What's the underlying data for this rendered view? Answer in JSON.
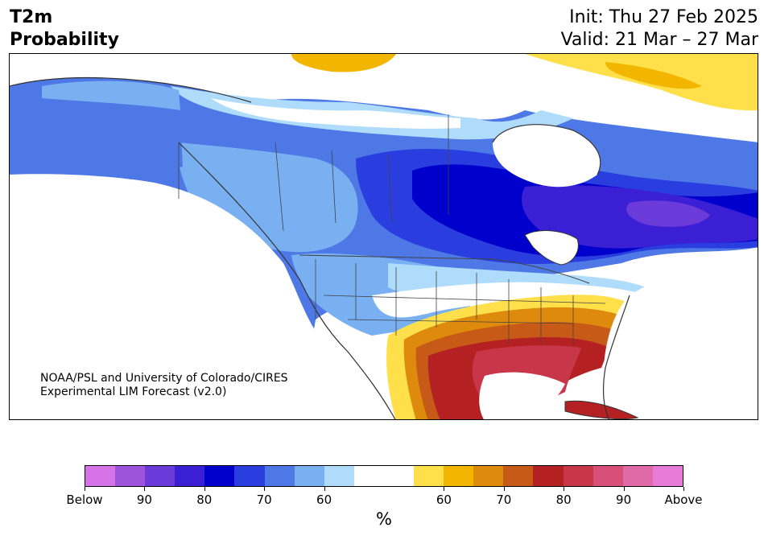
{
  "title": {
    "variable": "T2m",
    "subtitle": "Probability"
  },
  "header": {
    "init": "Init: Thu 27 Feb 2025",
    "valid": "Valid: 21 Mar – 27 Mar"
  },
  "credit": {
    "line1": "NOAA/PSL and University of Colorado/CIRES",
    "line2": "Experimental LIM Forecast (v2.0)"
  },
  "colorbar": {
    "unit": "%",
    "colors": [
      "#d673e8",
      "#9d53db",
      "#6a3bd8",
      "#3a1fd4",
      "#0000cd",
      "#2a3ee0",
      "#4d78e5",
      "#78b0f1",
      "#b0dcfc",
      "#ffffff",
      "#ffffff",
      "#ffe04a",
      "#f2b600",
      "#de8a0c",
      "#c85a17",
      "#b52123",
      "#c8364a",
      "#d8507a",
      "#e06aa8",
      "#e87ad8"
    ],
    "ticks": [
      {
        "label": "Below"
      },
      {
        "label": "90"
      },
      {
        "label": "80"
      },
      {
        "label": "70"
      },
      {
        "label": "60"
      },
      {
        "label": "60"
      },
      {
        "label": "70"
      },
      {
        "label": "80"
      },
      {
        "label": "90"
      },
      {
        "label": "Above"
      }
    ]
  },
  "map_regions": [
    {
      "name": "arctic-coast-above",
      "category": "Above 60"
    },
    {
      "name": "western-canada-below",
      "category": "Below 60-70"
    },
    {
      "name": "hudson-bay-below",
      "category": "Below 80"
    },
    {
      "name": "quebec-below",
      "category": "Below 85"
    },
    {
      "name": "southeast-us-above",
      "category": "Above 75-80"
    },
    {
      "name": "texas-above",
      "category": "Above 70"
    }
  ]
}
